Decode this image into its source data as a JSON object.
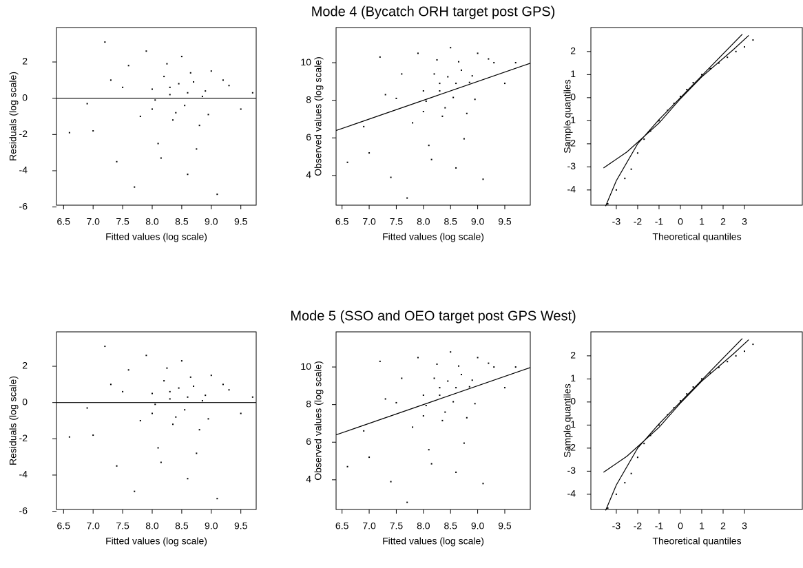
{
  "chart_data": [
    {
      "type": "scatter",
      "xlabel": "Fitted values (log scale)",
      "ylabel": "Residuals (log scale)",
      "color": "#000000",
      "x": [
        7.2,
        7.6,
        7.8,
        8.0,
        8.1,
        8.2,
        8.3,
        8.4,
        8.5,
        8.6,
        8.7,
        8.8,
        8.9,
        9.0,
        9.1,
        9.3,
        9.5,
        6.9,
        7.0,
        7.4,
        7.5,
        7.7,
        7.9,
        8.05,
        8.15,
        8.25,
        8.35,
        8.45,
        8.55,
        8.65,
        8.75,
        8.85,
        8.95,
        9.2,
        9.7,
        6.6,
        7.3,
        8.0,
        8.3,
        8.6
      ],
      "values": [
        3.1,
        1.8,
        -1.0,
        0.5,
        -2.5,
        1.2,
        0.2,
        -0.8,
        2.3,
        -4.2,
        0.9,
        -1.5,
        0.4,
        1.5,
        -5.3,
        0.7,
        -0.6,
        -0.3,
        -1.8,
        -3.5,
        0.6,
        -4.9,
        2.6,
        -0.1,
        -3.3,
        1.9,
        -1.2,
        0.8,
        -0.4,
        1.4,
        -2.8,
        0.1,
        -0.9,
        1.0,
        0.3,
        -1.9,
        1.0,
        -0.6,
        0.6,
        0.3
      ],
      "lines": [
        {
          "x": [
            6.38,
            9.76
          ],
          "values": [
            0,
            0
          ]
        }
      ],
      "xlim": [
        6.38,
        9.76
      ],
      "ylim": [
        -5.9,
        3.9
      ],
      "xticks": [
        6.5,
        {
          "value": 7,
          "label": "7.0"
        },
        7.5,
        {
          "value": 8,
          "label": "8.0"
        },
        8.5,
        {
          "value": 9,
          "label": "9.0"
        },
        9.5
      ],
      "yticks": [
        -6,
        -4,
        -2,
        0,
        2
      ]
    },
    {
      "type": "scatter",
      "title": "Mode 4 (Bycatch ORH target post GPS)",
      "xlabel": "Fitted values (log scale)",
      "ylabel": "Observed values (log scale)",
      "color": "#000000",
      "x": [
        7.2,
        7.6,
        7.8,
        8.0,
        8.1,
        8.2,
        8.3,
        8.4,
        8.5,
        8.6,
        8.7,
        8.8,
        8.9,
        9.0,
        9.1,
        9.3,
        9.5,
        6.9,
        7.0,
        7.4,
        7.5,
        7.7,
        7.9,
        8.05,
        8.15,
        8.25,
        8.35,
        8.45,
        8.55,
        8.65,
        8.75,
        8.85,
        8.95,
        9.2,
        9.7,
        6.6,
        7.3,
        8.0,
        8.3,
        8.6
      ],
      "values": [
        10.3,
        9.4,
        6.8,
        8.5,
        5.6,
        9.4,
        8.5,
        7.6,
        10.8,
        4.4,
        9.6,
        7.3,
        9.3,
        10.5,
        3.8,
        10.0,
        8.9,
        6.6,
        5.2,
        3.9,
        8.1,
        2.8,
        10.5,
        7.95,
        4.85,
        10.15,
        7.15,
        9.25,
        8.15,
        10.05,
        5.95,
        8.95,
        8.05,
        10.2,
        10.0,
        4.7,
        8.3,
        7.4,
        8.9,
        8.9
      ],
      "lines": [
        {
          "x": [
            6.39,
            9.97
          ],
          "values": [
            6.39,
            9.97
          ]
        }
      ],
      "xlim": [
        6.39,
        9.97
      ],
      "ylim": [
        2.42,
        11.87
      ],
      "xticks": [
        6.5,
        {
          "value": 7,
          "label": "7.0"
        },
        7.5,
        {
          "value": 8,
          "label": "8.0"
        },
        8.5,
        {
          "value": 9,
          "label": "9.0"
        },
        9.5
      ],
      "yticks": [
        4,
        6,
        8,
        10
      ]
    },
    {
      "type": "scatter",
      "xlabel": "Theoretical quantiles",
      "ylabel": "Sample quantiles",
      "color": "#000000",
      "x": [
        -3.4,
        -3.0,
        -2.6,
        -2.3,
        -2.0,
        -1.7,
        -1.4,
        -1.0,
        -0.6,
        -0.3,
        0,
        0.3,
        0.6,
        1.0,
        1.4,
        1.8,
        2.2,
        2.6,
        3.0,
        3.4
      ],
      "values": [
        -4.6,
        -4.0,
        -3.5,
        -3.1,
        -2.4,
        -1.8,
        -1.45,
        -1.0,
        -0.55,
        -0.25,
        0.05,
        0.35,
        0.65,
        1.0,
        1.25,
        1.5,
        1.75,
        2.0,
        2.2,
        2.5
      ],
      "lines": [
        {
          "x": [
            -3.6,
            -2.5,
            -1,
            0,
            1,
            2.5,
            3.2
          ],
          "values": [
            -3.05,
            -2.35,
            -1.1,
            -0.05,
            0.9,
            2.1,
            2.7
          ]
        },
        {
          "x": [
            -3.5,
            -3,
            -2,
            -1,
            0,
            1,
            2,
            2.9
          ],
          "values": [
            -4.7,
            -3.6,
            -2.0,
            -0.95,
            0.0,
            0.95,
            1.9,
            2.75
          ]
        }
      ],
      "xlim": [
        -4.19,
        5.74
      ],
      "ylim": [
        -4.66,
        3.04
      ],
      "xticks": [
        -3,
        -2,
        -1,
        0,
        1,
        2,
        3
      ],
      "yticks": [
        -4,
        -3,
        -2,
        -1,
        0,
        1,
        2
      ]
    },
    {
      "type": "scatter",
      "xlabel": "Fitted values (log scale)",
      "ylabel": "Residuals (log scale)",
      "color": "#000000",
      "x": [
        7.2,
        7.6,
        7.8,
        8.0,
        8.1,
        8.2,
        8.3,
        8.4,
        8.5,
        8.6,
        8.7,
        8.8,
        8.9,
        9.0,
        9.1,
        9.3,
        9.5,
        6.9,
        7.0,
        7.4,
        7.5,
        7.7,
        7.9,
        8.05,
        8.15,
        8.25,
        8.35,
        8.45,
        8.55,
        8.65,
        8.75,
        8.85,
        8.95,
        9.2,
        9.7,
        6.6,
        7.3,
        8.0,
        8.3,
        8.6
      ],
      "values": [
        3.1,
        1.8,
        -1.0,
        0.5,
        -2.5,
        1.2,
        0.2,
        -0.8,
        2.3,
        -4.2,
        0.9,
        -1.5,
        0.4,
        1.5,
        -5.3,
        0.7,
        -0.6,
        -0.3,
        -1.8,
        -3.5,
        0.6,
        -4.9,
        2.6,
        -0.1,
        -3.3,
        1.9,
        -1.2,
        0.8,
        -0.4,
        1.4,
        -2.8,
        0.1,
        -0.9,
        1.0,
        0.3,
        -1.9,
        1.0,
        -0.6,
        0.6,
        0.3
      ],
      "lines": [
        {
          "x": [
            6.38,
            9.76
          ],
          "values": [
            0,
            0
          ]
        }
      ],
      "xlim": [
        6.38,
        9.76
      ],
      "ylim": [
        -5.9,
        3.9
      ],
      "xticks": [
        6.5,
        {
          "value": 7,
          "label": "7.0"
        },
        7.5,
        {
          "value": 8,
          "label": "8.0"
        },
        8.5,
        {
          "value": 9,
          "label": "9.0"
        },
        9.5
      ],
      "yticks": [
        -6,
        -4,
        -2,
        0,
        2
      ]
    },
    {
      "type": "scatter",
      "title": "Mode 5 (SSO and OEO target post GPS West)",
      "xlabel": "Fitted values (log scale)",
      "ylabel": "Observed values (log scale)",
      "color": "#000000",
      "x": [
        7.2,
        7.6,
        7.8,
        8.0,
        8.1,
        8.2,
        8.3,
        8.4,
        8.5,
        8.6,
        8.7,
        8.8,
        8.9,
        9.0,
        9.1,
        9.3,
        9.5,
        6.9,
        7.0,
        7.4,
        7.5,
        7.7,
        7.9,
        8.05,
        8.15,
        8.25,
        8.35,
        8.45,
        8.55,
        8.65,
        8.75,
        8.85,
        8.95,
        9.2,
        9.7,
        6.6,
        7.3,
        8.0,
        8.3,
        8.6
      ],
      "values": [
        10.3,
        9.4,
        6.8,
        8.5,
        5.6,
        9.4,
        8.5,
        7.6,
        10.8,
        4.4,
        9.6,
        7.3,
        9.3,
        10.5,
        3.8,
        10.0,
        8.9,
        6.6,
        5.2,
        3.9,
        8.1,
        2.8,
        10.5,
        7.95,
        4.85,
        10.15,
        7.15,
        9.25,
        8.15,
        10.05,
        5.95,
        8.95,
        8.05,
        10.2,
        10.0,
        4.7,
        8.3,
        7.4,
        8.9,
        8.9
      ],
      "lines": [
        {
          "x": [
            6.39,
            9.97
          ],
          "values": [
            6.39,
            9.97
          ]
        }
      ],
      "xlim": [
        6.39,
        9.97
      ],
      "ylim": [
        2.42,
        11.87
      ],
      "xticks": [
        6.5,
        {
          "value": 7,
          "label": "7.0"
        },
        7.5,
        {
          "value": 8,
          "label": "8.0"
        },
        8.5,
        {
          "value": 9,
          "label": "9.0"
        },
        9.5
      ],
      "yticks": [
        4,
        6,
        8,
        10
      ]
    },
    {
      "type": "scatter",
      "xlabel": "Theoretical quantiles",
      "ylabel": "Sample quantiles",
      "color": "#000000",
      "x": [
        -3.4,
        -3.0,
        -2.6,
        -2.3,
        -2.0,
        -1.7,
        -1.4,
        -1.0,
        -0.6,
        -0.3,
        0,
        0.3,
        0.6,
        1.0,
        1.4,
        1.8,
        2.2,
        2.6,
        3.0,
        3.4
      ],
      "values": [
        -4.6,
        -4.0,
        -3.5,
        -3.1,
        -2.4,
        -1.8,
        -1.45,
        -1.0,
        -0.55,
        -0.25,
        0.05,
        0.35,
        0.65,
        1.0,
        1.25,
        1.5,
        1.75,
        2.0,
        2.2,
        2.5
      ],
      "lines": [
        {
          "x": [
            -3.6,
            -2.5,
            -1,
            0,
            1,
            2.5,
            3.2
          ],
          "values": [
            -3.05,
            -2.35,
            -1.1,
            -0.05,
            0.9,
            2.1,
            2.7
          ]
        },
        {
          "x": [
            -3.5,
            -3,
            -2,
            -1,
            0,
            1,
            2,
            2.9
          ],
          "values": [
            -4.7,
            -3.6,
            -2.0,
            -0.95,
            0.0,
            0.95,
            1.9,
            2.75
          ]
        }
      ],
      "xlim": [
        -4.19,
        5.74
      ],
      "ylim": [
        -4.66,
        3.04
      ],
      "xticks": [
        -3,
        -2,
        -1,
        0,
        1,
        2,
        3
      ],
      "yticks": [
        -4,
        -3,
        -2,
        -1,
        0,
        1,
        2
      ]
    }
  ]
}
